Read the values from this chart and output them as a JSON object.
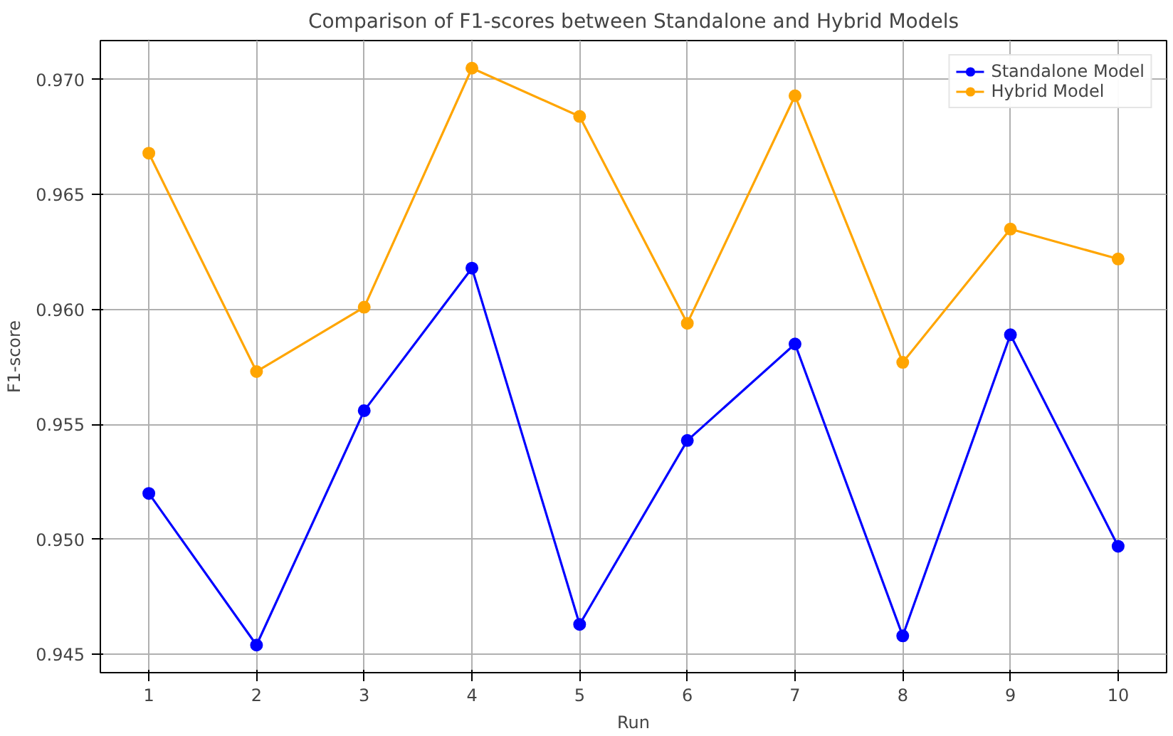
{
  "chart_data": {
    "type": "line",
    "title": "Comparison of F1-scores between Standalone and Hybrid Models",
    "xlabel": "Run",
    "ylabel": "F1-score",
    "x": [
      1,
      2,
      3,
      4,
      5,
      6,
      7,
      8,
      9,
      10
    ],
    "series": [
      {
        "name": "Standalone Model",
        "color": "#0000ff",
        "values": [
          0.952,
          0.9454,
          0.9556,
          0.9618,
          0.9463,
          0.9543,
          0.9585,
          0.9458,
          0.9589,
          0.9497
        ]
      },
      {
        "name": "Hybrid Model",
        "color": "#ffa500",
        "values": [
          0.9668,
          0.9573,
          0.9601,
          0.9705,
          0.9684,
          0.9594,
          0.9693,
          0.9577,
          0.9635,
          0.9622
        ]
      }
    ],
    "xlim": [
      0.55,
      10.45
    ],
    "ylim": [
      0.9442,
      0.9717
    ],
    "xticks": [
      1,
      2,
      3,
      4,
      5,
      6,
      7,
      8,
      9,
      10
    ],
    "yticks": [
      {
        "value": 0.945,
        "label": "0.945"
      },
      {
        "value": 0.95,
        "label": "0.950"
      },
      {
        "value": 0.955,
        "label": "0.955"
      },
      {
        "value": 0.96,
        "label": "0.960"
      },
      {
        "value": 0.965,
        "label": "0.965"
      },
      {
        "value": 0.97,
        "label": "0.970"
      }
    ],
    "grid": true,
    "legend": "top right",
    "marker": "circle",
    "line_style": "solid"
  }
}
